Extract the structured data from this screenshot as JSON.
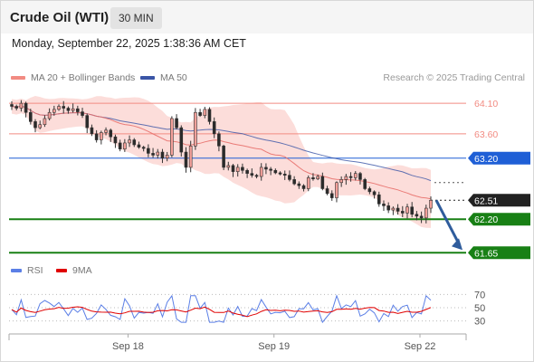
{
  "header": {
    "title": "Crude Oil (WTI)",
    "interval": "30 MIN"
  },
  "timestamp": "Monday, September 22, 2025 1:38:36 AM CET",
  "legend": {
    "ma20": "MA 20 + Bollinger Bands",
    "ma50": "MA 50",
    "copyright": "Research © 2025 Trading Central",
    "rsi": "RSI",
    "rsi_ma": "9MA"
  },
  "colors": {
    "candle_up": "#f4a09a",
    "candle_down": "#2a2a2a",
    "bollinger_fill": "#fbd7d4",
    "ma20": "#e8706b",
    "ma50": "#3a55a6",
    "resistance": "#f28b82",
    "pivot": "#1f5fd6",
    "support": "#188015",
    "current": "#222222",
    "arrow": "#2f5c9c",
    "rsi": "#5b7fe6",
    "rsi_ma": "#e00000"
  },
  "chart_data": [
    {
      "type": "candlestick",
      "title": "Crude Oil (WTI)",
      "interval": "30 MIN",
      "ylim": [
        61.55,
        64.28
      ],
      "x_ticks": [
        "Sep 18",
        "Sep 19",
        "Sep 22"
      ],
      "levels": [
        {
          "value": 64.1,
          "label": "64.10",
          "kind": "resistance"
        },
        {
          "value": 63.6,
          "label": "63.60",
          "kind": "resistance"
        },
        {
          "value": 63.2,
          "label": "63.20",
          "kind": "pivot"
        },
        {
          "value": 62.51,
          "label": "62.51",
          "kind": "current"
        },
        {
          "value": 62.2,
          "label": "62.20",
          "kind": "support"
        },
        {
          "value": 61.65,
          "label": "61.65",
          "kind": "support"
        }
      ],
      "forecast": {
        "from": 62.51,
        "to": 61.65
      },
      "close": [
        64.05,
        64.02,
        64.1,
        63.95,
        63.8,
        63.7,
        63.75,
        63.85,
        63.95,
        64.0,
        64.05,
        64.02,
        63.98,
        64.01,
        63.96,
        63.9,
        63.7,
        63.6,
        63.5,
        63.62,
        63.66,
        63.55,
        63.45,
        63.35,
        63.45,
        63.5,
        63.42,
        63.38,
        63.36,
        63.28,
        63.25,
        63.3,
        63.2,
        63.25,
        63.85,
        63.7,
        63.3,
        63.05,
        63.4,
        63.95,
        63.9,
        64.0,
        63.8,
        63.6,
        63.4,
        63.05,
        63.08,
        62.98,
        63.05,
        63.0,
        62.95,
        62.92,
        62.9,
        63.05,
        63.02,
        63.0,
        62.96,
        62.94,
        62.92,
        62.85,
        62.78,
        62.75,
        62.7,
        62.88,
        62.86,
        62.9,
        62.7,
        62.62,
        62.55,
        62.8,
        62.85,
        62.9,
        62.88,
        62.95,
        62.85,
        62.7,
        62.65,
        62.6,
        62.45,
        62.42,
        62.35,
        62.38,
        62.33,
        62.3,
        62.4,
        62.28,
        62.25,
        62.22,
        62.38,
        62.51
      ],
      "rsi": {
        "ylim": [
          20,
          80
        ],
        "levels": [
          70,
          50,
          30
        ]
      }
    }
  ]
}
